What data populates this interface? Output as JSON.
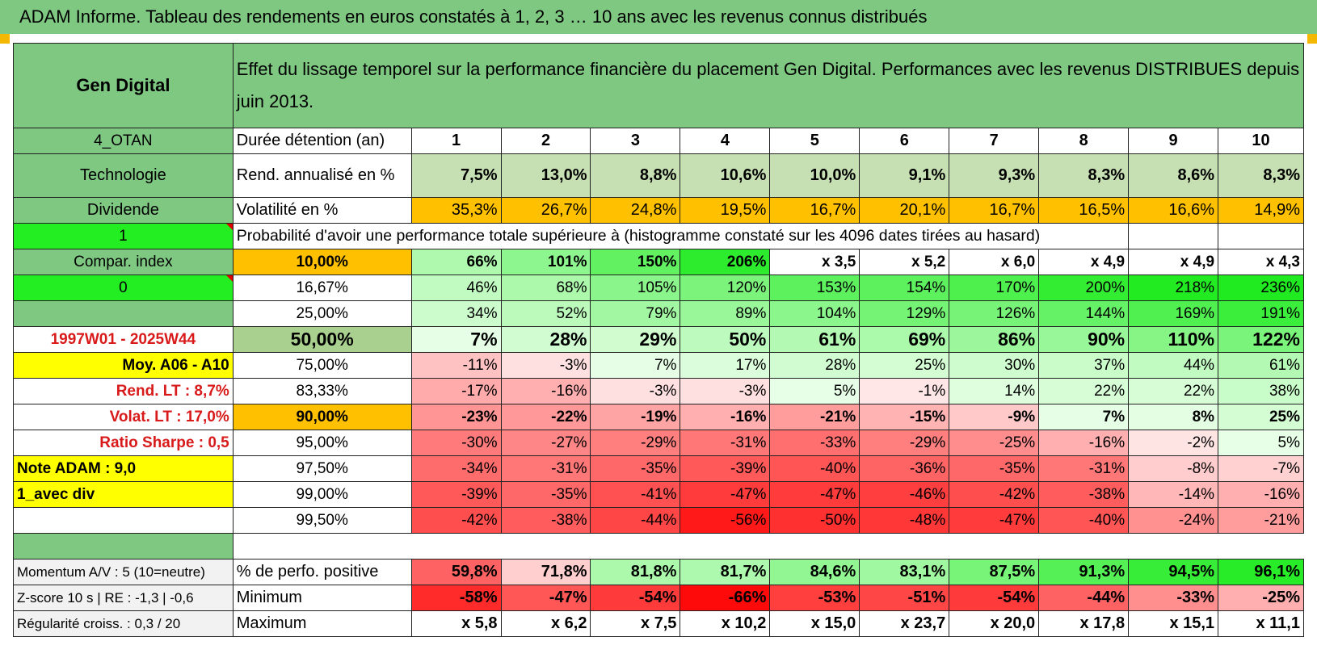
{
  "title": "ADAM Informe. Tableau des rendements en euros constatés à 1, 2, 3 … 10 ans avec les revenus connus distribués",
  "fund": "Gen Digital",
  "heading": "Effet du lissage temporel sur la performance financière du placement Gen Digital. Performances avec les revenus DISTRIBUES depuis juin 2013.",
  "left": {
    "otan": "4_OTAN",
    "sector": "Technologie",
    "type": "Dividende",
    "flag1": "1",
    "compar": "Compar. index",
    "flag0": "0",
    "blank": "",
    "period": "1997W01 - 2025W44",
    "moy": "Moy. A06 - A10",
    "rend_lt": "Rend. LT :    8,7%",
    "volat_lt": "Volat. LT :    17,0%",
    "sharpe": "Ratio Sharpe :    0,5",
    "note": "Note ADAM : 9,0",
    "avec_div": "1_avec div",
    "momentum": "Momentum A/V : 5 (10=neutre)",
    "zscore": "Z-score 10 s | RE : -1,3 | -0,6",
    "regularite": "Régularité croiss. : 0,3 / 20"
  },
  "labels": {
    "duree": "Durée détention (an)",
    "rend": "Rend. annualisé en %",
    "volat": "Volatilité en %",
    "proba": "Probabilité d'avoir une performance totale supérieure à (histogramme constaté sur les 4096 dates tirées au hasard)",
    "perfo_pos": "% de perfo. positive",
    "minimum": "Minimum",
    "maximum": "Maximum"
  },
  "years": [
    "1",
    "2",
    "3",
    "4",
    "5",
    "6",
    "7",
    "8",
    "9",
    "10"
  ],
  "rend": [
    "7,5%",
    "13,0%",
    "8,8%",
    "10,6%",
    "10,0%",
    "9,1%",
    "9,3%",
    "8,3%",
    "8,6%",
    "8,3%"
  ],
  "volat": [
    "35,3%",
    "26,7%",
    "24,8%",
    "19,5%",
    "16,7%",
    "20,1%",
    "16,7%",
    "16,5%",
    "16,6%",
    "14,9%"
  ],
  "prob_rows": [
    {
      "p": "10,00%",
      "v": [
        "66%",
        "101%",
        "150%",
        "206%",
        "x 3,5",
        "x 5,2",
        "x 6,0",
        "x 4,9",
        "x 4,9",
        "x 4,3"
      ]
    },
    {
      "p": "16,67%",
      "v": [
        "46%",
        "68%",
        "105%",
        "120%",
        "153%",
        "154%",
        "170%",
        "200%",
        "218%",
        "236%"
      ]
    },
    {
      "p": "25,00%",
      "v": [
        "34%",
        "52%",
        "79%",
        "89%",
        "104%",
        "129%",
        "126%",
        "144%",
        "169%",
        "191%"
      ]
    },
    {
      "p": "50,00%",
      "v": [
        "7%",
        "28%",
        "29%",
        "50%",
        "61%",
        "69%",
        "86%",
        "90%",
        "110%",
        "122%"
      ]
    },
    {
      "p": "75,00%",
      "v": [
        "-11%",
        "-3%",
        "7%",
        "17%",
        "28%",
        "25%",
        "30%",
        "37%",
        "44%",
        "61%"
      ]
    },
    {
      "p": "83,33%",
      "v": [
        "-17%",
        "-16%",
        "-3%",
        "-3%",
        "5%",
        "-1%",
        "14%",
        "22%",
        "22%",
        "38%"
      ]
    },
    {
      "p": "90,00%",
      "v": [
        "-23%",
        "-22%",
        "-19%",
        "-16%",
        "-21%",
        "-15%",
        "-9%",
        "7%",
        "8%",
        "25%"
      ]
    },
    {
      "p": "95,00%",
      "v": [
        "-30%",
        "-27%",
        "-29%",
        "-31%",
        "-33%",
        "-29%",
        "-25%",
        "-16%",
        "-2%",
        "5%"
      ]
    },
    {
      "p": "97,50%",
      "v": [
        "-34%",
        "-31%",
        "-35%",
        "-39%",
        "-40%",
        "-36%",
        "-35%",
        "-31%",
        "-8%",
        "-7%"
      ]
    },
    {
      "p": "99,00%",
      "v": [
        "-39%",
        "-35%",
        "-41%",
        "-47%",
        "-47%",
        "-46%",
        "-42%",
        "-38%",
        "-14%",
        "-16%"
      ]
    },
    {
      "p": "99,50%",
      "v": [
        "-42%",
        "-38%",
        "-44%",
        "-56%",
        "-50%",
        "-48%",
        "-47%",
        "-40%",
        "-24%",
        "-21%"
      ]
    }
  ],
  "perfo_pos": [
    "59,8%",
    "71,8%",
    "81,8%",
    "81,7%",
    "84,6%",
    "83,1%",
    "87,5%",
    "91,3%",
    "94,5%",
    "96,1%"
  ],
  "minimum": [
    "-58%",
    "-47%",
    "-54%",
    "-66%",
    "-53%",
    "-51%",
    "-54%",
    "-44%",
    "-33%",
    "-25%"
  ],
  "maximum": [
    "x 5,8",
    "x 6,2",
    "x 7,5",
    "x 10,2",
    "x 15,0",
    "x 23,7",
    "x 20,0",
    "x 17,8",
    "x 15,1",
    "x 11,1"
  ],
  "colors": {
    "header_green": "#7ec882",
    "bright_green": "#22ee22",
    "yellow": "#ffff00",
    "orange": "#ffc000",
    "label_red": "#d91a1a"
  }
}
